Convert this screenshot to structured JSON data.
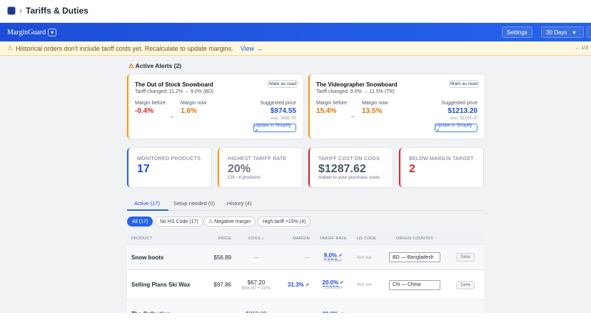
{
  "breadcrumb": {
    "separator": "›",
    "title": "Tariffs & Duties"
  },
  "header": {
    "app": "MarginGuard",
    "dropdown": "▾",
    "settings": "Settings",
    "range": "30 Days",
    "range_caret": "▾"
  },
  "banner": {
    "icon": "⚠",
    "message": "Historical orders don't include tariff costs yet. Recalculate to update margins.",
    "link": "View →",
    "pager": "← 1/3"
  },
  "alerts": {
    "icon": "⚠",
    "title": "Active Alerts (2)",
    "arrow": "→",
    "items": [
      {
        "name": "The Out of Stock Snowboard",
        "change": "Tariff changed: 11.2% → 9.0% (BD)",
        "action": "Mark as read",
        "before_label": "Margin before",
        "before": "-0.4%",
        "now_label": "Margin now",
        "now": "1.6%",
        "price_label": "Suggested price",
        "price": "$974.55",
        "was": "was: $885.95",
        "update": "Update in Shopify ↗"
      },
      {
        "name": "The Videographer Snowboard",
        "change": "Tariff changed: 9.0% → 11.5% (TR)",
        "action": "Mark as read",
        "before_label": "Margin before",
        "before": "15.4%",
        "now_label": "Margin now",
        "now": "13.5%",
        "price_label": "Suggested price",
        "price": "$1213.20",
        "was": "was: $1186.00",
        "update": "Update in Shopify ↗"
      }
    ]
  },
  "stats": [
    {
      "label": "MONITORED PRODUCTS",
      "value": "17"
    },
    {
      "label": "HIGHEST TARIFF RATE",
      "value": "20%",
      "note": "CN - 4 products"
    },
    {
      "label": "TARIFF COST ON COGS",
      "value": "$1287.62",
      "note": "Added to your purchase costs"
    },
    {
      "label": "BELOW MARGIN TARGET",
      "value": "2"
    }
  ],
  "tabs": [
    "Active (17)",
    "Setup needed (0)",
    "History (4)"
  ],
  "filters": [
    "All (17)",
    "No HS Code (17)",
    "⚠ Negative margin",
    "High tariff >15% (4)"
  ],
  "table": {
    "columns": [
      "PRODUCT",
      "PRICE",
      "COGS ↕",
      "MARGIN",
      "TARIFF RATE",
      "HS CODE",
      "ORIGIN COUNTRY"
    ],
    "rows": [
      {
        "product": "Snow boots",
        "price": "$56.89",
        "cogs": "—",
        "margin": "—",
        "tariff": "9.0%",
        "tariff_note": "Estimated",
        "hs_code": "Not set",
        "origin": "BD — Bangladesh",
        "action": "Save"
      },
      {
        "product": "Selling Plans Ski Wax",
        "price": "$97.86",
        "cogs": "$67.20",
        "cogs_note": "$56.00 + 20%",
        "margin": "31.3%",
        "tariff": "20.0%",
        "tariff_note": "Estimated",
        "hs_code": "Not set",
        "origin": "CN — China",
        "action": "Save"
      },
      {
        "product": "The Collection",
        "cogs": "$360.00",
        "tariff": "20.0%"
      }
    ]
  }
}
